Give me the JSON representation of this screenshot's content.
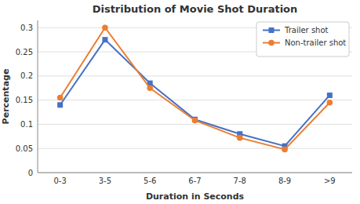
{
  "chart_data": {
    "type": "line",
    "title": "Distribution of Movie Shot Duration",
    "xlabel": "Duration in Seconds",
    "ylabel": "Percentage",
    "categories": [
      "0-3",
      "3-5",
      "5-6",
      "6-7",
      "7-8",
      "8-9",
      ">9"
    ],
    "series": [
      {
        "name": "Trailer shot",
        "color": "#4472C4",
        "marker": "square",
        "values": [
          0.14,
          0.275,
          0.185,
          0.11,
          0.08,
          0.055,
          0.16
        ]
      },
      {
        "name": "Non-trailer shot",
        "color": "#ED7D31",
        "marker": "circle",
        "values": [
          0.155,
          0.3,
          0.175,
          0.108,
          0.072,
          0.048,
          0.145
        ]
      }
    ],
    "ylim": [
      0,
      0.315
    ],
    "yticks": [
      0,
      0.05,
      0.1,
      0.15,
      0.2,
      0.25,
      0.3
    ],
    "grid": true,
    "legend": "upper right"
  }
}
